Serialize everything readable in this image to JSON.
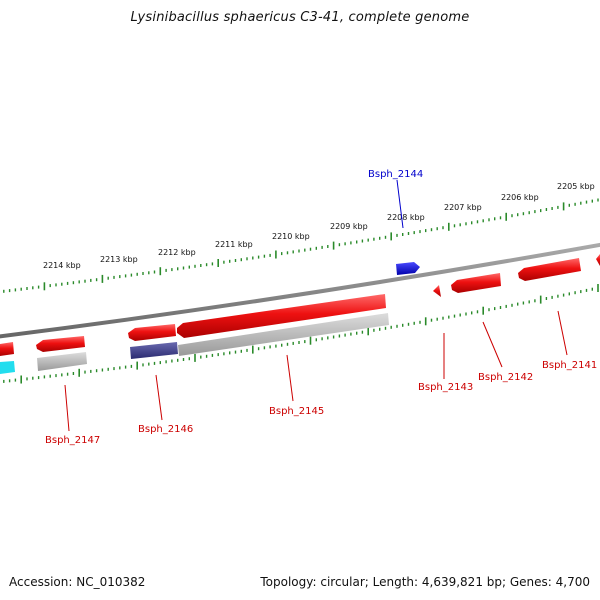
{
  "title": "Lysinibacillus sphaericus C3-41, complete genome",
  "footer": {
    "accession": "Accession: NC_010382",
    "summary": "Topology: circular; Length: 4,639,821 bp; Genes: 4,700"
  },
  "ruler": {
    "labels": [
      "2205 kbp",
      "2206 kbp",
      "2207 kbp",
      "2208 kbp",
      "2209 kbp",
      "2210 kbp",
      "2211 kbp",
      "2212 kbp",
      "2213 kbp",
      "2214 kbp"
    ]
  },
  "colors": {
    "backbone": "#888888",
    "tick": "#2a8a2a",
    "gene_forward": "#ee1111",
    "gene_reverse_shadow": "#bbbbbb",
    "highlight_blue": "#1010dd",
    "highlight_navy": "#4a4a9a",
    "highlight_cyan": "#22ddee",
    "label_red": "#cc0000",
    "label_blue": "#0000cc"
  },
  "genes": [
    {
      "id": "Bsph_2141",
      "color": "red"
    },
    {
      "id": "Bsph_2142",
      "color": "red"
    },
    {
      "id": "Bsph_2143",
      "color": "red"
    },
    {
      "id": "Bsph_2144",
      "color": "blue"
    },
    {
      "id": "Bsph_2145",
      "color": "red"
    },
    {
      "id": "Bsph_2146",
      "color": "red"
    },
    {
      "id": "Bsph_2147",
      "color": "red"
    }
  ]
}
